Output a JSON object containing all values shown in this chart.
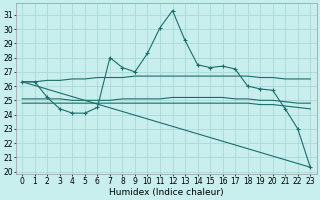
{
  "xlabel": "Humidex (Indice chaleur)",
  "bg_color": "#c8eeee",
  "grid_color": "#aad8d8",
  "line_color": "#1a6e6a",
  "xlim": [
    -0.5,
    23.5
  ],
  "ylim": [
    19.8,
    31.8
  ],
  "yticks": [
    20,
    21,
    22,
    23,
    24,
    25,
    26,
    27,
    28,
    29,
    30,
    31
  ],
  "xtick_labels": [
    "0",
    "1",
    "2",
    "3",
    "4",
    "5",
    "6",
    "7",
    "8",
    "9",
    "10",
    "11",
    "12",
    "13",
    "14",
    "15",
    "16",
    "17",
    "18",
    "19",
    "20",
    "21",
    "22",
    "23"
  ],
  "line_main": {
    "x": [
      0,
      1,
      2,
      3,
      4,
      5,
      6,
      7,
      8,
      9,
      10,
      11,
      12,
      13,
      14,
      15,
      16,
      17,
      18,
      19,
      20,
      21,
      22,
      23
    ],
    "y": [
      26.3,
      26.3,
      25.2,
      24.4,
      24.1,
      24.1,
      24.5,
      28.0,
      27.3,
      27.0,
      28.3,
      30.1,
      31.3,
      29.2,
      27.5,
      27.3,
      27.4,
      27.2,
      26.0,
      25.8,
      25.7,
      24.4,
      23.0,
      20.3
    ]
  },
  "line_top_flat": {
    "x": [
      0,
      1,
      2,
      3,
      4,
      5,
      6,
      7,
      8,
      9,
      10,
      11,
      12,
      13,
      14,
      15,
      16,
      17,
      18,
      19,
      20,
      21,
      22,
      23
    ],
    "y": [
      26.3,
      26.3,
      26.4,
      26.4,
      26.5,
      26.5,
      26.6,
      26.6,
      26.6,
      26.7,
      26.7,
      26.7,
      26.7,
      26.7,
      26.7,
      26.7,
      26.7,
      26.7,
      26.7,
      26.6,
      26.6,
      26.5,
      26.5,
      26.5
    ]
  },
  "line_mid_flat": {
    "x": [
      0,
      1,
      2,
      3,
      4,
      5,
      6,
      7,
      8,
      9,
      10,
      11,
      12,
      13,
      14,
      15,
      16,
      17,
      18,
      19,
      20,
      21,
      22,
      23
    ],
    "y": [
      25.1,
      25.1,
      25.1,
      25.1,
      25.0,
      25.0,
      25.0,
      25.0,
      25.1,
      25.1,
      25.1,
      25.1,
      25.2,
      25.2,
      25.2,
      25.2,
      25.2,
      25.1,
      25.1,
      25.0,
      25.0,
      24.9,
      24.8,
      24.8
    ]
  },
  "line_low_flat": {
    "x": [
      0,
      1,
      2,
      3,
      4,
      5,
      6,
      7,
      8,
      9,
      10,
      11,
      12,
      13,
      14,
      15,
      16,
      17,
      18,
      19,
      20,
      21,
      22,
      23
    ],
    "y": [
      24.8,
      24.8,
      24.8,
      24.8,
      24.8,
      24.8,
      24.8,
      24.8,
      24.8,
      24.8,
      24.8,
      24.8,
      24.8,
      24.8,
      24.8,
      24.8,
      24.8,
      24.8,
      24.8,
      24.7,
      24.7,
      24.6,
      24.5,
      24.4
    ]
  },
  "line_diagonal": {
    "x": [
      0,
      23
    ],
    "y": [
      26.3,
      20.3
    ]
  }
}
